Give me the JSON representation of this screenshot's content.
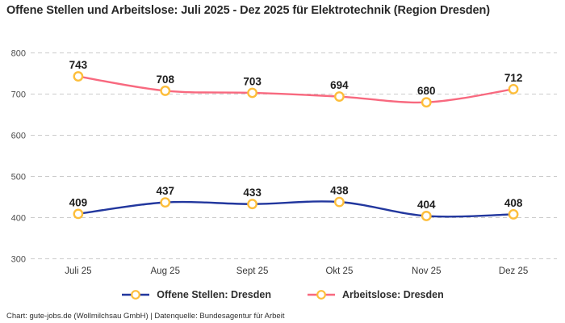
{
  "title": "Offene Stellen und Arbeitslose: Juli 2025 - Dez 2025 für Elektrotechnik (Region Dresden)",
  "footer": "Chart: gute-jobs.de (Wollmilchsau GmbH) | Datenquelle: Bundesagentur für Arbeit",
  "chart_data": {
    "type": "line",
    "title": "Offene Stellen und Arbeitslose: Juli 2025 - Dez 2025 für Elektrotechnik (Region Dresden)",
    "categories": [
      "Juli 25",
      "Aug 25",
      "Sept 25",
      "Okt 25",
      "Nov 25",
      "Dez 25"
    ],
    "series": [
      {
        "name": "Offene Stellen: Dresden",
        "values": [
          409,
          437,
          433,
          438,
          404,
          408
        ],
        "color": "#22379E"
      },
      {
        "name": "Arbeitslose: Dresden",
        "values": [
          743,
          708,
          703,
          694,
          680,
          712
        ],
        "color": "#F8697F"
      }
    ],
    "data_labels": true,
    "marker": {
      "fill": "#FFFFFF",
      "stroke": "#FDBE3B"
    },
    "y_ticks": [
      800,
      700,
      600,
      500,
      400,
      300
    ],
    "ylim": [
      300,
      800
    ],
    "xlabel": "",
    "ylabel": "",
    "grid": "horizontal-dashed",
    "grid_color": "#CBCBCB",
    "tick_label_color": "#4D4D4D",
    "x_label_color": "#383838",
    "value_label_color": "#1D1D1D",
    "legend_position": "bottom"
  }
}
